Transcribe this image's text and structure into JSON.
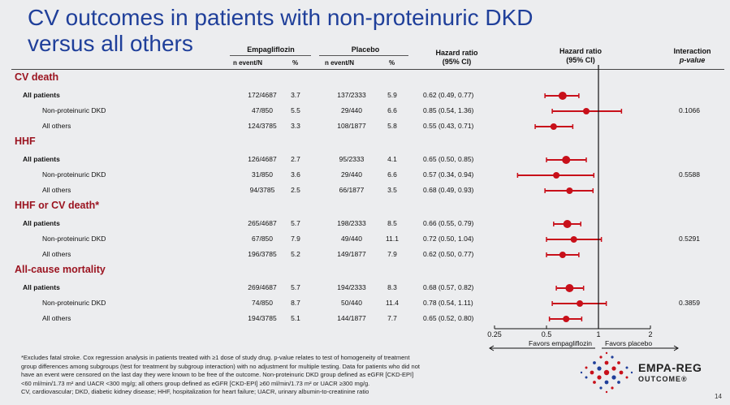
{
  "title_line1": "CV outcomes in patients with non-proteinuric DKD",
  "title_line2": "versus all others",
  "headers": {
    "empagliflozin": "Empagliflozin",
    "placebo": "Placebo",
    "n_event": "n event/N",
    "pct": "%",
    "hr_text": "Hazard ratio",
    "ci_text": "(95% CI)",
    "hr_plot": "Hazard ratio",
    "ci_plot": "(95% CI)",
    "interaction": "Interaction",
    "pvalue": "p-value"
  },
  "footnote_lines": [
    "*Excludes fatal stroke. Cox regression analysis in patients treated with ≥1 dose of study drug. p-value relates to test of homogeneity of treatment",
    "group differences among subgroups (test for treatment by subgroup interaction) with no adjustment for multiple testing. Data for patients who did not",
    "have an event were censored on the last day they were known to be free of the outcome. Non-proteinuric DKD group defined as eGFR [CKD-EPI]",
    "<60 ml/min/1.73 m² and UACR <300 mg/g; all others group defined as eGFR [CKD-EPI] ≥60 ml/min/1.73 m² or UACR ≥300 mg/g.",
    "CV, cardiovascular; DKD, diabetic kidney disease; HHF, hospitalization for heart failure; UACR, urinary albumin-to-creatinine ratio"
  ],
  "logo": {
    "line1": "EMPA-REG",
    "line2": "OUTCOME®"
  },
  "page_number": "14",
  "colors": {
    "title": "#1f3f9a",
    "section": "#9b1420",
    "marker": "#c8101a"
  },
  "chart_data": {
    "type": "forest",
    "xaxis": {
      "scale": "log",
      "ticks": [
        "0.25",
        "0.5",
        "1",
        "2"
      ],
      "tick_values": [
        0.25,
        0.5,
        1,
        2
      ],
      "range": [
        0.25,
        2.6
      ],
      "reference_line": 1
    },
    "favors_left": "Favors empagliflozin",
    "favors_right": "Favors placebo",
    "sections": [
      {
        "name": "CV death",
        "pvalue": "0.1066",
        "rows": [
          {
            "label": "All patients",
            "bold": true,
            "empa_n": "172/4687",
            "empa_pct": "3.7",
            "pbo_n": "137/2333",
            "pbo_pct": "5.9",
            "hr_text": "0.62 (0.49, 0.77)",
            "hr": 0.62,
            "lo": 0.49,
            "hi": 0.77
          },
          {
            "label": "Non-proteinuric DKD",
            "bold": false,
            "empa_n": "47/850",
            "empa_pct": "5.5",
            "pbo_n": "29/440",
            "pbo_pct": "6.6",
            "hr_text": "0.85 (0.54, 1.36)",
            "hr": 0.85,
            "lo": 0.54,
            "hi": 1.36
          },
          {
            "label": "All others",
            "bold": false,
            "empa_n": "124/3785",
            "empa_pct": "3.3",
            "pbo_n": "108/1877",
            "pbo_pct": "5.8",
            "hr_text": "0.55 (0.43, 0.71)",
            "hr": 0.55,
            "lo": 0.43,
            "hi": 0.71
          }
        ]
      },
      {
        "name": "HHF",
        "pvalue": "0.5588",
        "rows": [
          {
            "label": "All patients",
            "bold": true,
            "empa_n": "126/4687",
            "empa_pct": "2.7",
            "pbo_n": "95/2333",
            "pbo_pct": "4.1",
            "hr_text": "0.65 (0.50, 0.85)",
            "hr": 0.65,
            "lo": 0.5,
            "hi": 0.85
          },
          {
            "label": "Non-proteinuric DKD",
            "bold": false,
            "empa_n": "31/850",
            "empa_pct": "3.6",
            "pbo_n": "29/440",
            "pbo_pct": "6.6",
            "hr_text": "0.57 (0.34, 0.94)",
            "hr": 0.57,
            "lo": 0.34,
            "hi": 0.94
          },
          {
            "label": "All others",
            "bold": false,
            "empa_n": "94/3785",
            "empa_pct": "2.5",
            "pbo_n": "66/1877",
            "pbo_pct": "3.5",
            "hr_text": "0.68 (0.49, 0.93)",
            "hr": 0.68,
            "lo": 0.49,
            "hi": 0.93
          }
        ]
      },
      {
        "name": "HHF or CV death*",
        "pvalue": "0.5291",
        "rows": [
          {
            "label": "All patients",
            "bold": true,
            "empa_n": "265/4687",
            "empa_pct": "5.7",
            "pbo_n": "198/2333",
            "pbo_pct": "8.5",
            "hr_text": "0.66 (0.55, 0.79)",
            "hr": 0.66,
            "lo": 0.55,
            "hi": 0.79
          },
          {
            "label": "Non-proteinuric DKD",
            "bold": false,
            "empa_n": "67/850",
            "empa_pct": "7.9",
            "pbo_n": "49/440",
            "pbo_pct": "11.1",
            "hr_text": "0.72 (0.50, 1.04)",
            "hr": 0.72,
            "lo": 0.5,
            "hi": 1.04
          },
          {
            "label": "All others",
            "bold": false,
            "empa_n": "196/3785",
            "empa_pct": "5.2",
            "pbo_n": "149/1877",
            "pbo_pct": "7.9",
            "hr_text": "0.62 (0.50, 0.77)",
            "hr": 0.62,
            "lo": 0.5,
            "hi": 0.77
          }
        ]
      },
      {
        "name": "All-cause mortality",
        "pvalue": "0.3859",
        "rows": [
          {
            "label": "All patients",
            "bold": true,
            "empa_n": "269/4687",
            "empa_pct": "5.7",
            "pbo_n": "194/2333",
            "pbo_pct": "8.3",
            "hr_text": "0.68 (0.57, 0.82)",
            "hr": 0.68,
            "lo": 0.57,
            "hi": 0.82
          },
          {
            "label": "Non-proteinuric DKD",
            "bold": false,
            "empa_n": "74/850",
            "empa_pct": "8.7",
            "pbo_n": "50/440",
            "pbo_pct": "11.4",
            "hr_text": "0.78 (0.54, 1.11)",
            "hr": 0.78,
            "lo": 0.54,
            "hi": 1.11
          },
          {
            "label": "All others",
            "bold": false,
            "empa_n": "194/3785",
            "empa_pct": "5.1",
            "pbo_n": "144/1877",
            "pbo_pct": "7.7",
            "hr_text": "0.65 (0.52, 0.80)",
            "hr": 0.65,
            "lo": 0.52,
            "hi": 0.8
          }
        ]
      }
    ]
  }
}
